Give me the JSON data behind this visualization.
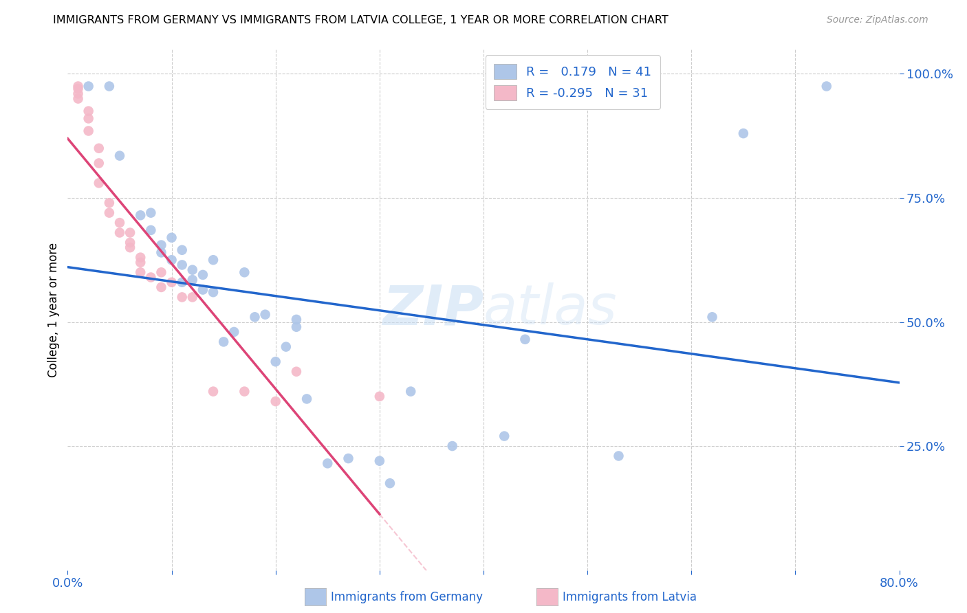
{
  "title": "IMMIGRANTS FROM GERMANY VS IMMIGRANTS FROM LATVIA COLLEGE, 1 YEAR OR MORE CORRELATION CHART",
  "source": "Source: ZipAtlas.com",
  "ylabel": "College, 1 year or more",
  "x_range": [
    0.0,
    0.8
  ],
  "y_range": [
    0.0,
    1.05
  ],
  "germany_color": "#aec6e8",
  "latvia_color": "#f4b8c8",
  "germany_line_color": "#2266cc",
  "latvia_line_color": "#dd4477",
  "latvia_dash_color": "#f4b8c8",
  "watermark_zip": "ZIP",
  "watermark_atlas": "atlas",
  "germany_x": [
    0.02,
    0.04,
    0.05,
    0.07,
    0.08,
    0.09,
    0.1,
    0.1,
    0.11,
    0.11,
    0.12,
    0.12,
    0.13,
    0.13,
    0.14,
    0.15,
    0.16,
    0.17,
    0.18,
    0.19,
    0.2,
    0.21,
    0.22,
    0.23,
    0.25,
    0.27,
    0.3,
    0.31,
    0.33,
    0.37,
    0.42,
    0.44,
    0.53,
    0.62,
    0.65,
    0.73,
    0.08,
    0.09,
    0.11,
    0.14,
    0.22
  ],
  "germany_y": [
    0.975,
    0.975,
    0.835,
    0.715,
    0.685,
    0.64,
    0.67,
    0.625,
    0.615,
    0.645,
    0.585,
    0.605,
    0.565,
    0.595,
    0.625,
    0.46,
    0.48,
    0.6,
    0.51,
    0.515,
    0.42,
    0.45,
    0.49,
    0.345,
    0.215,
    0.225,
    0.22,
    0.175,
    0.36,
    0.25,
    0.27,
    0.465,
    0.23,
    0.51,
    0.88,
    0.975,
    0.72,
    0.655,
    0.58,
    0.56,
    0.505
  ],
  "latvia_x": [
    0.01,
    0.01,
    0.01,
    0.01,
    0.02,
    0.02,
    0.02,
    0.03,
    0.03,
    0.03,
    0.04,
    0.04,
    0.05,
    0.05,
    0.06,
    0.06,
    0.06,
    0.07,
    0.07,
    0.07,
    0.08,
    0.09,
    0.09,
    0.1,
    0.11,
    0.12,
    0.14,
    0.17,
    0.2,
    0.22,
    0.3
  ],
  "latvia_y": [
    0.975,
    0.96,
    0.97,
    0.95,
    0.91,
    0.885,
    0.925,
    0.85,
    0.82,
    0.78,
    0.74,
    0.72,
    0.7,
    0.68,
    0.68,
    0.66,
    0.65,
    0.63,
    0.62,
    0.6,
    0.59,
    0.6,
    0.57,
    0.58,
    0.55,
    0.55,
    0.36,
    0.36,
    0.34,
    0.4,
    0.35
  ]
}
